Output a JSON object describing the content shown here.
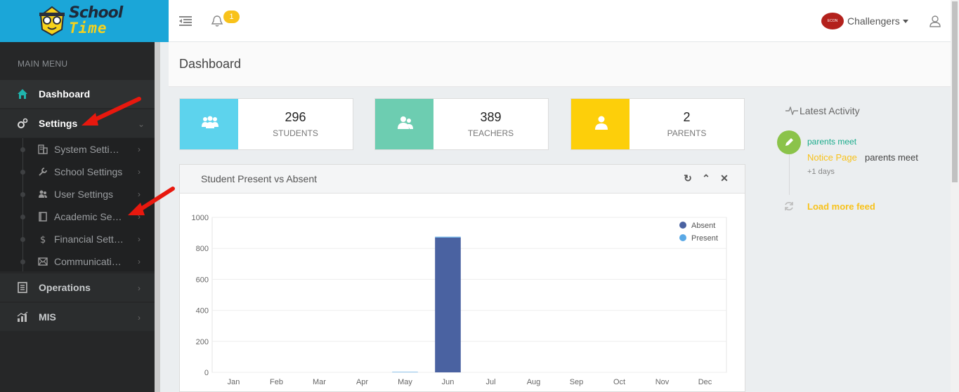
{
  "app": {
    "logo_line1": "School",
    "logo_line2": "Time"
  },
  "topbar": {
    "notification_count": "1",
    "user_name": "Challengers",
    "avatar_text": "ECON"
  },
  "sidebar": {
    "section_title": "MAIN MENU",
    "items": [
      {
        "label": "Dashboard",
        "icon": "home-icon"
      },
      {
        "label": "Settings",
        "icon": "gears-icon"
      },
      {
        "label": "Operations",
        "icon": "list-icon"
      },
      {
        "label": "MIS",
        "icon": "chart-icon"
      }
    ],
    "settings_sub": [
      {
        "label": "System Settings",
        "icon": "building-icon"
      },
      {
        "label": "School Settings",
        "icon": "wrench-icon"
      },
      {
        "label": "User Settings",
        "icon": "users-icon"
      },
      {
        "label": "Academic Settings",
        "icon": "book-icon"
      },
      {
        "label": "Financial Settings",
        "icon": "dollar-icon"
      },
      {
        "label": "Communication Settings",
        "icon": "envelope-icon"
      }
    ]
  },
  "page": {
    "title": "Dashboard"
  },
  "stats": [
    {
      "value": "296",
      "label": "STUDENTS",
      "color": "#5dd3ed"
    },
    {
      "value": "389",
      "label": "TEACHERS",
      "color": "#6dcdb1"
    },
    {
      "value": "2",
      "label": "PARENTS",
      "color": "#fdcf0a"
    }
  ],
  "chart_panel": {
    "title": "Student Present vs Absent"
  },
  "chart_data": {
    "type": "bar",
    "categories": [
      "Jan",
      "Feb",
      "Mar",
      "Apr",
      "May",
      "Jun",
      "Jul",
      "Aug",
      "Sep",
      "Oct",
      "Nov",
      "Dec"
    ],
    "series": [
      {
        "name": "Absent",
        "color": "#4a62a1",
        "values": [
          0,
          0,
          0,
          0,
          0,
          870,
          0,
          0,
          0,
          0,
          0,
          0
        ]
      },
      {
        "name": "Present",
        "color": "#5aa9e6",
        "values": [
          0,
          0,
          0,
          0,
          3,
          5,
          0,
          0,
          0,
          0,
          0,
          0
        ]
      }
    ],
    "yticks": [
      0,
      200,
      400,
      600,
      800,
      1000
    ],
    "ylim": [
      0,
      1000
    ],
    "legend": "top-right",
    "grid": true
  },
  "activity": {
    "title": "Latest Activity",
    "item_title": "parents meet",
    "item_source": "Notice Page",
    "item_text": "parents meet",
    "item_time": "+1 days",
    "load_more": "Load more feed"
  }
}
